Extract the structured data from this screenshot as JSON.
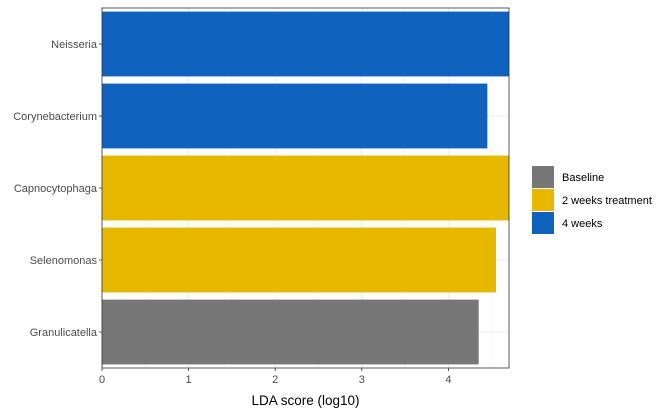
{
  "chart_data": {
    "type": "bar",
    "orientation": "horizontal",
    "categories": [
      "Neisseria",
      "Corynebacterium",
      "Capnocytophaga",
      "Selenomonas",
      "Granulicatella"
    ],
    "values": [
      4.85,
      4.45,
      4.8,
      4.55,
      4.35
    ],
    "groups": [
      "4 weeks",
      "4 weeks",
      "2 weeks treatment",
      "2 weeks treatment",
      "Baseline"
    ],
    "xlabel": "LDA score (log10)",
    "ylabel": "",
    "xlim": [
      0,
      4.7
    ],
    "xticks": [
      "0",
      "1",
      "2",
      "3",
      "4"
    ],
    "grid": true,
    "legend": {
      "placement": "right",
      "entries": [
        {
          "label": "Baseline",
          "color": "#777777"
        },
        {
          "label": "2 weeks treatment",
          "color": "#E7B800"
        },
        {
          "label": "4 weeks",
          "color": "#0F62BE"
        }
      ]
    },
    "colors": {
      "Baseline": "#777777",
      "2 weeks treatment": "#E7B800",
      "4 weeks": "#0F62BE"
    }
  }
}
